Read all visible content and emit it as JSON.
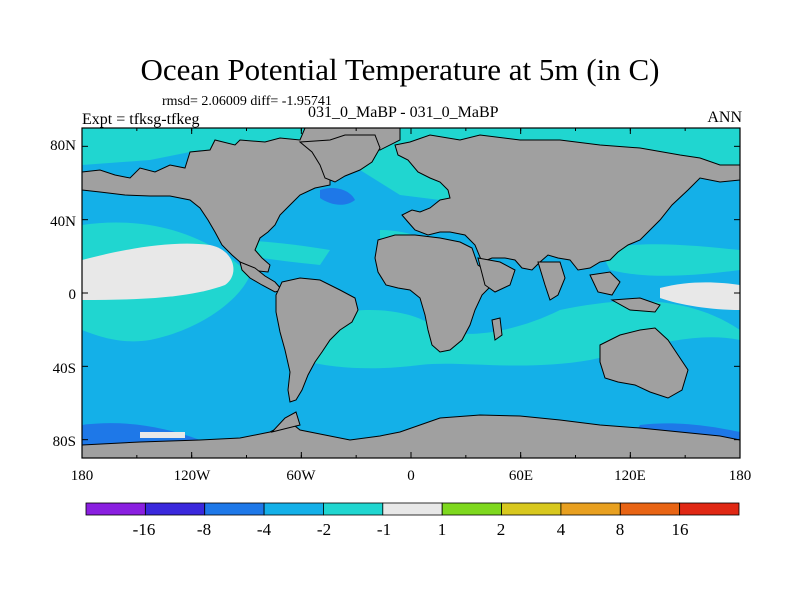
{
  "title": "Ocean Potential Temperature at 5m (in C)",
  "stats": "rmsd= 2.06009 diff= -1.95741",
  "experiment": "Expt = tfksg-tfkeg",
  "cases": "031_0_MaBP - 031_0_MaBP",
  "season": "ANN",
  "lat_labels": [
    "80N",
    "40N",
    "0",
    "40S",
    "80S"
  ],
  "lon_labels": [
    "180",
    "120W",
    "60W",
    "0",
    "60E",
    "120E",
    "180"
  ],
  "colorbar": {
    "labels": [
      "-16",
      "-8",
      "-4",
      "-2",
      "-1",
      "1",
      "2",
      "4",
      "8",
      "16"
    ],
    "colors": [
      "#8a1fe0",
      "#3a28dc",
      "#1e78e8",
      "#14b0e8",
      "#20d6d0",
      "#e8e8e8",
      "#7ed81e",
      "#d8c81e",
      "#e8a020",
      "#e86414",
      "#e02814"
    ]
  },
  "map_colors": {
    "land": "#a0a0a0",
    "ocean_main": "#14b0e8",
    "ocean_light": "#20d6d0",
    "ocean_dark": "#1e78e8",
    "warm": "#e8e8e8"
  }
}
